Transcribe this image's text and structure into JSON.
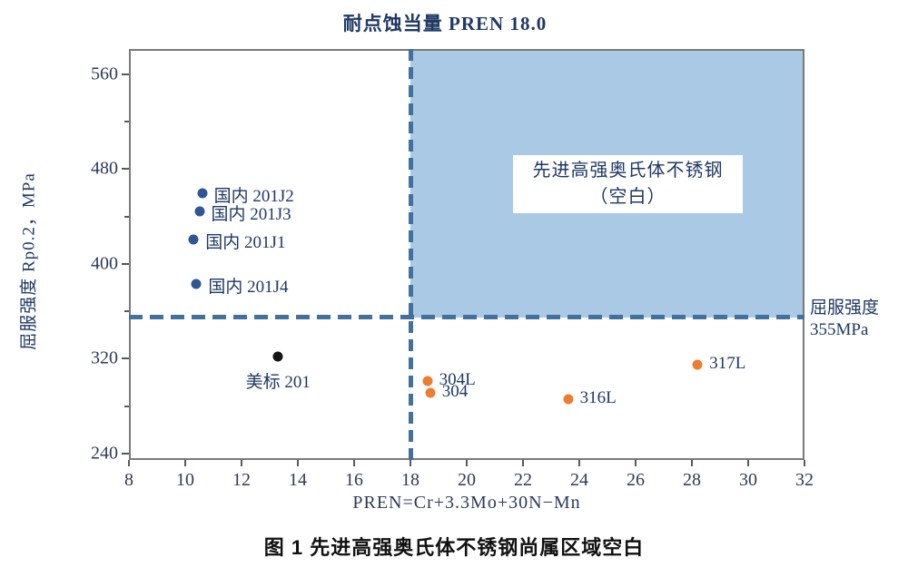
{
  "figure": {
    "caption": "图 1 先进高强奥氏体不锈钢尚属区域空白"
  },
  "chart_data": {
    "type": "scatter",
    "title": "耐点蚀当量 PREN 18.0",
    "xlabel": "PREN=Cr+3.3Mo+30N−Mn",
    "ylabel": "屈服强度 Rp0.2，MPa",
    "xlim": [
      8,
      32
    ],
    "ylim": [
      234.6,
      581.4
    ],
    "x_ticks": [
      8,
      10,
      12,
      14,
      16,
      18,
      20,
      22,
      24,
      26,
      28,
      30,
      32
    ],
    "y_ticks": [
      240,
      320,
      400,
      480,
      560
    ],
    "y_minor_ticks": [
      280,
      360,
      440,
      520
    ],
    "grid": false,
    "legend": "none",
    "ref_lines": [
      {
        "orient": "v",
        "value": 18,
        "color": "#41719C",
        "meaning": "耐点蚀当量 PREN 18.0 阈值"
      },
      {
        "orient": "h",
        "value": 355,
        "color": "#41719C",
        "meaning": "屈服强度 355MPa 阈值"
      }
    ],
    "shaded_region": {
      "x_from": 18,
      "x_to": 32,
      "y_from": 355,
      "y_to": 581.4,
      "color": "#A9C9E5",
      "label_line1": "先进高强奥氏体不锈钢",
      "label_line2": "（空白）"
    },
    "threshold_label_line1": "屈服强度",
    "threshold_label_line2": "355MPa",
    "series": [
      {
        "name": "domestic-201-series",
        "color": "#2F5597",
        "points": [
          {
            "x": 10.6,
            "y": 460,
            "label": "国内 201J2",
            "label_side": "right"
          },
          {
            "x": 10.5,
            "y": 444,
            "label": "国内 201J3",
            "label_side": "right"
          },
          {
            "x": 10.3,
            "y": 421,
            "label": "国内 201J1",
            "label_side": "right"
          },
          {
            "x": 10.4,
            "y": 383,
            "label": "国内 201J4",
            "label_side": "right"
          }
        ]
      },
      {
        "name": "us-standard-201",
        "color": "#151515",
        "points": [
          {
            "x": 13.3,
            "y": 322,
            "label": "美标 201",
            "label_side": "below"
          }
        ]
      },
      {
        "name": "standard-300-series",
        "color": "#ED7D31",
        "points": [
          {
            "x": 18.6,
            "y": 301,
            "label": "304L",
            "label_side": "right"
          },
          {
            "x": 18.7,
            "y": 291,
            "label": "304",
            "label_side": "right"
          },
          {
            "x": 23.6,
            "y": 286,
            "label": "316L",
            "label_side": "right"
          },
          {
            "x": 28.2,
            "y": 315,
            "label": "317L",
            "label_side": "right"
          }
        ]
      }
    ]
  }
}
